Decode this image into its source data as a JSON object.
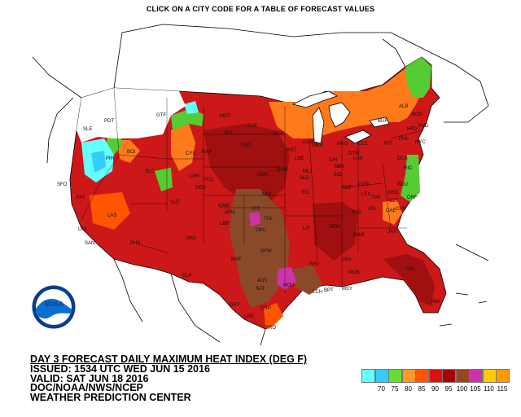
{
  "header": {
    "instruction": "CLICK ON A CITY CODE FOR A TABLE OF FORECAST VALUES"
  },
  "info": {
    "title": "DAY 3 FORECAST DAILY MAXIMUM HEAT INDEX (DEG F)",
    "issued": "ISSUED: 1534 UTC WED JUN 15 2016",
    "valid": "VALID: SAT JUN 18 2016",
    "agency": "DOC/NOAA/NWS/NCEP",
    "center": "WEATHER PREDICTION CENTER"
  },
  "logo": {
    "text": "NOAA"
  },
  "legend": {
    "labels": [
      "70",
      "75",
      "80",
      "85",
      "90",
      "95",
      "100",
      "105",
      "110",
      "115"
    ],
    "colors": [
      "#66ffff",
      "#33ccff",
      "#66dd33",
      "#ff9922",
      "#ff5500",
      "#dd1111",
      "#aa0000",
      "#994422",
      "#cc33aa",
      "#ffcc00",
      "#ff9900"
    ]
  },
  "cities": [
    "GTF",
    "PDT",
    "SLE",
    "SFO",
    "FAT",
    "LAX",
    "SAN",
    "LAS",
    "PHX",
    "BOI",
    "SLC",
    "DEN",
    "ABQ",
    "ELP",
    "RAP",
    "BIS",
    "MSP",
    "GRB",
    "DSM",
    "OMA",
    "ICT",
    "OKC",
    "TUL",
    "DFW",
    "SAT",
    "AUS",
    "HOU",
    "MAF",
    "STL",
    "MKE",
    "CHI",
    "DTW",
    "CLE",
    "BUF",
    "ALB",
    "BOS",
    "PHL",
    "NYC",
    "DCA",
    "RIC",
    "RDU",
    "ATL",
    "CHS",
    "JAX",
    "MIA",
    "TPA",
    "MSY",
    "BHM",
    "MEM",
    "LIT",
    "BNA",
    "IND",
    "CVG",
    "SDF",
    "PIT",
    "CAE",
    "CLT",
    "GSO",
    "TVS",
    "CRP",
    "BRO",
    "LRD",
    "MCI",
    "FSD",
    "FAR",
    "MOT",
    "PIH",
    "GJT",
    "CNM",
    "TCC",
    "CYS",
    "CPR",
    "LBB",
    "AMA",
    "DRT",
    "PVD",
    "HFD",
    "ORF",
    "MKG",
    "LAN",
    "MOB",
    "SHV",
    "LCH",
    "BPT",
    "JAN",
    "LEX",
    "SBN",
    "MLI",
    "ALO",
    "RST",
    "LSE"
  ]
}
